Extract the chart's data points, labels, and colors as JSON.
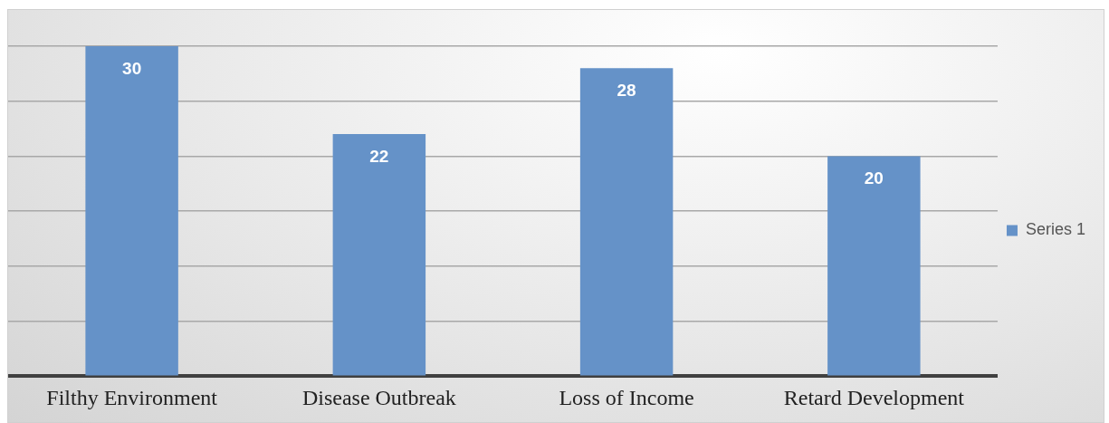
{
  "chart_data": {
    "type": "bar",
    "categories": [
      "Filthy Environment",
      "Disease Outbreak",
      "Loss of Income",
      "Retard Development"
    ],
    "series": [
      {
        "name": "Series 1",
        "color": "#6592c8",
        "values": [
          30,
          22,
          28,
          20
        ]
      }
    ],
    "ylim": [
      0,
      30
    ],
    "yticks": [
      {
        "value": 0,
        "label": null
      },
      {
        "value": 5,
        "label": null
      },
      {
        "value": 10,
        "label": null
      },
      {
        "value": 15,
        "label": null
      },
      {
        "value": 20,
        "label": null
      },
      {
        "value": 25,
        "label": null
      },
      {
        "value": 30,
        "label": null
      }
    ],
    "tick_labels": "x",
    "grid": "y",
    "legend": "right",
    "data_labels": true
  }
}
